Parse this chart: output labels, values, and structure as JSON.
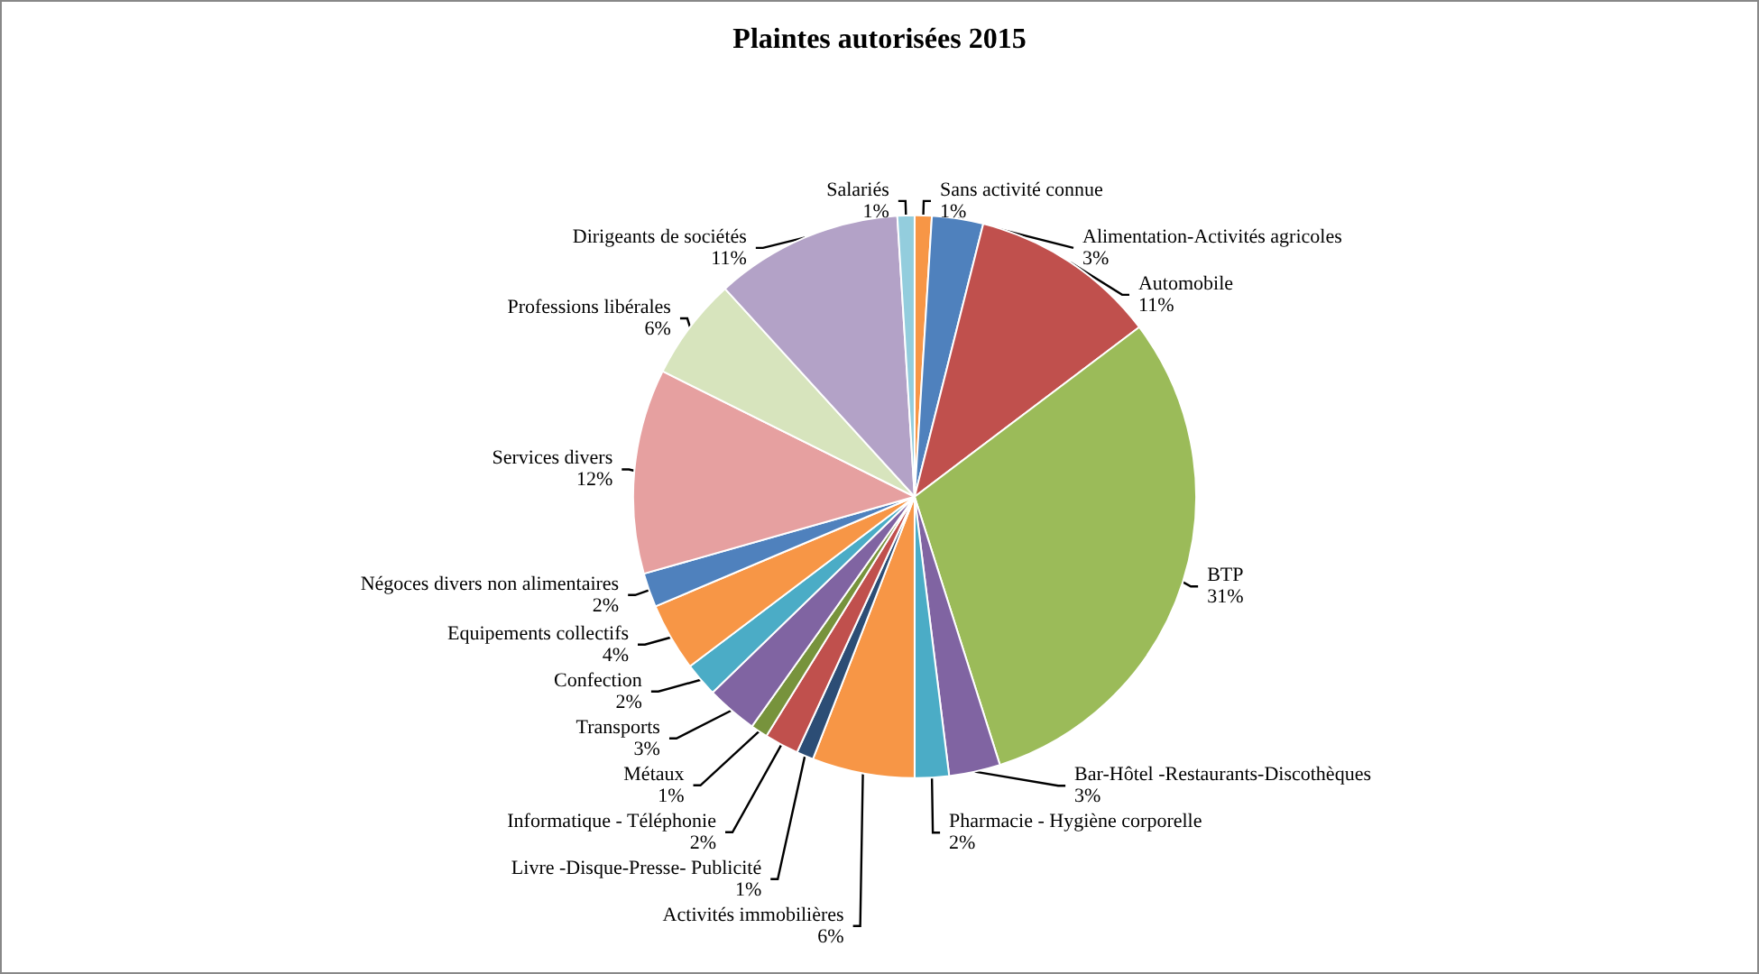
{
  "chart_data": {
    "type": "pie",
    "title": "Plaintes autorisées 2015",
    "categories": [
      "Sans activité connue",
      "Alimentation-Activités agricoles",
      "Automobile",
      "BTP",
      "Bar-Hôtel -Restaurants-Discothèques",
      "Pharmacie - Hygiène corporelle",
      "Activités immobilières",
      "Livre -Disque-Presse- Publicité",
      "Informatique - Téléphonie",
      "Métaux",
      "Transports",
      "Confection",
      "Equipements collectifs",
      "Négoces divers non alimentaires",
      "Services divers",
      "Professions libérales",
      "Dirigeants de sociétés",
      "Salariés"
    ],
    "values": [
      1,
      3,
      11,
      31,
      3,
      2,
      6,
      1,
      2,
      1,
      3,
      2,
      4,
      2,
      12,
      6,
      11,
      1
    ],
    "value_labels": [
      "1%",
      "3%",
      "11%",
      "31%",
      "3%",
      "2%",
      "6%",
      "1%",
      "2%",
      "1%",
      "3%",
      "2%",
      "4%",
      "2%",
      "12%",
      "6%",
      "11%",
      "1%"
    ],
    "colors": [
      "#f79646",
      "#4f81bd",
      "#c0504d",
      "#9bbb59",
      "#8064a2",
      "#4bacc6",
      "#f79646",
      "#2c4d75",
      "#c0504d",
      "#77933c",
      "#8064a2",
      "#4bacc6",
      "#f79646",
      "#4f81bd",
      "#e6a0a0",
      "#d7e4bd",
      "#b3a2c7",
      "#93cddd"
    ],
    "legend": false
  }
}
